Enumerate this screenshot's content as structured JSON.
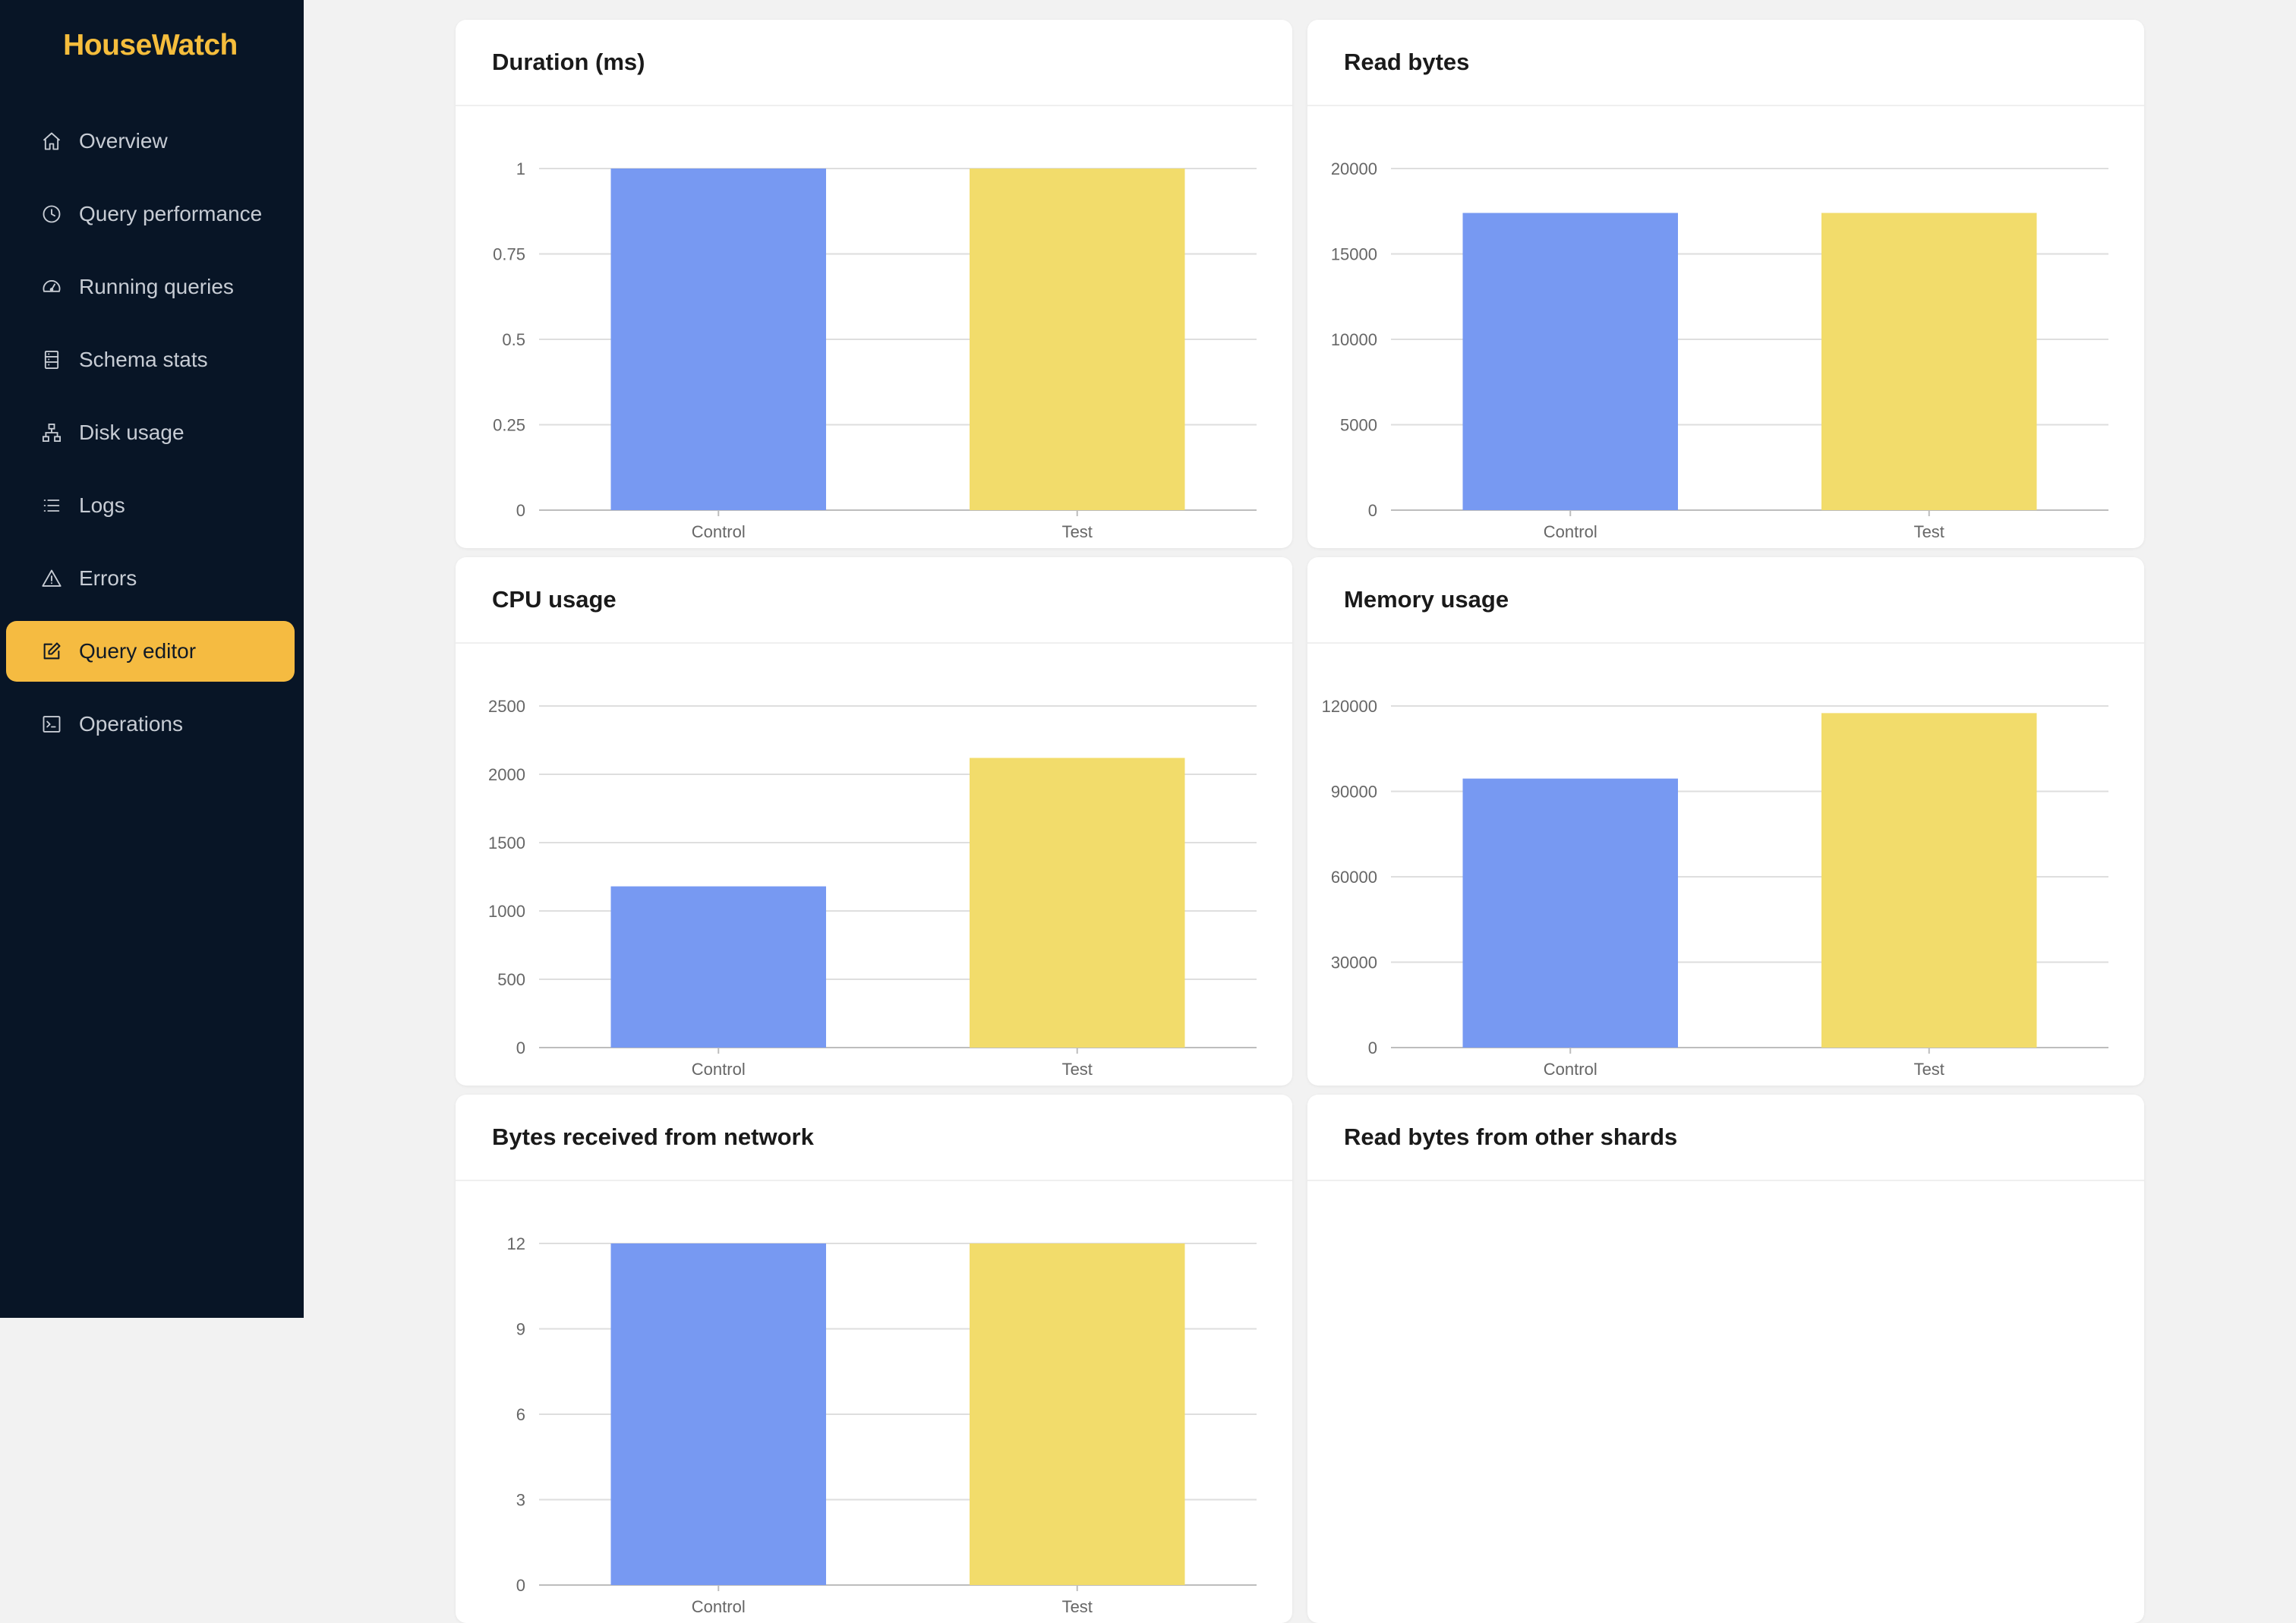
{
  "app": {
    "title": "HouseWatch"
  },
  "sidebar": {
    "items": [
      {
        "label": "Overview",
        "icon": "home-icon",
        "active": false
      },
      {
        "label": "Query performance",
        "icon": "clock-icon",
        "active": false
      },
      {
        "label": "Running queries",
        "icon": "dashboard-icon",
        "active": false
      },
      {
        "label": "Schema stats",
        "icon": "database-icon",
        "active": false
      },
      {
        "label": "Disk usage",
        "icon": "hierarchy-icon",
        "active": false
      },
      {
        "label": "Logs",
        "icon": "list-icon",
        "active": false
      },
      {
        "label": "Errors",
        "icon": "warning-icon",
        "active": false
      },
      {
        "label": "Query editor",
        "icon": "edit-icon",
        "active": true
      },
      {
        "label": "Operations",
        "icon": "terminal-icon",
        "active": false
      }
    ],
    "active_color": "#f5bb41",
    "background": "#081526"
  },
  "colors": {
    "control": "#7799f2",
    "test": "#f2dc6b"
  },
  "chart_data": [
    {
      "type": "bar",
      "title": "Duration (ms)",
      "categories": [
        "Control",
        "Test"
      ],
      "values": [
        1,
        1
      ],
      "yticks": [
        "0",
        "0.25",
        "0.5",
        "0.75",
        "1"
      ],
      "ylim": [
        0,
        1
      ]
    },
    {
      "type": "bar",
      "title": "Read bytes",
      "categories": [
        "Control",
        "Test"
      ],
      "values": [
        17400,
        17400
      ],
      "yticks": [
        "0",
        "5000",
        "10000",
        "15000",
        "20000"
      ],
      "ylim": [
        0,
        20000
      ]
    },
    {
      "type": "bar",
      "title": "CPU usage",
      "categories": [
        "Control",
        "Test"
      ],
      "values": [
        1180,
        2120
      ],
      "yticks": [
        "0",
        "500",
        "1000",
        "1500",
        "2000",
        "2500"
      ],
      "ylim": [
        0,
        2500
      ]
    },
    {
      "type": "bar",
      "title": "Memory usage",
      "categories": [
        "Control",
        "Test"
      ],
      "values": [
        94500,
        117500
      ],
      "yticks": [
        "0",
        "30000",
        "60000",
        "90000",
        "120000"
      ],
      "ylim": [
        0,
        120000
      ]
    },
    {
      "type": "bar",
      "title": "Bytes received from network",
      "categories": [
        "Control",
        "Test"
      ],
      "values": [
        12,
        12
      ],
      "yticks": [
        "0",
        "3",
        "6",
        "9",
        "12"
      ],
      "ylim": [
        0,
        12
      ]
    },
    {
      "type": "bar",
      "title": "Read bytes from other shards",
      "categories": [],
      "values": [],
      "yticks": [],
      "ylim": null
    }
  ]
}
